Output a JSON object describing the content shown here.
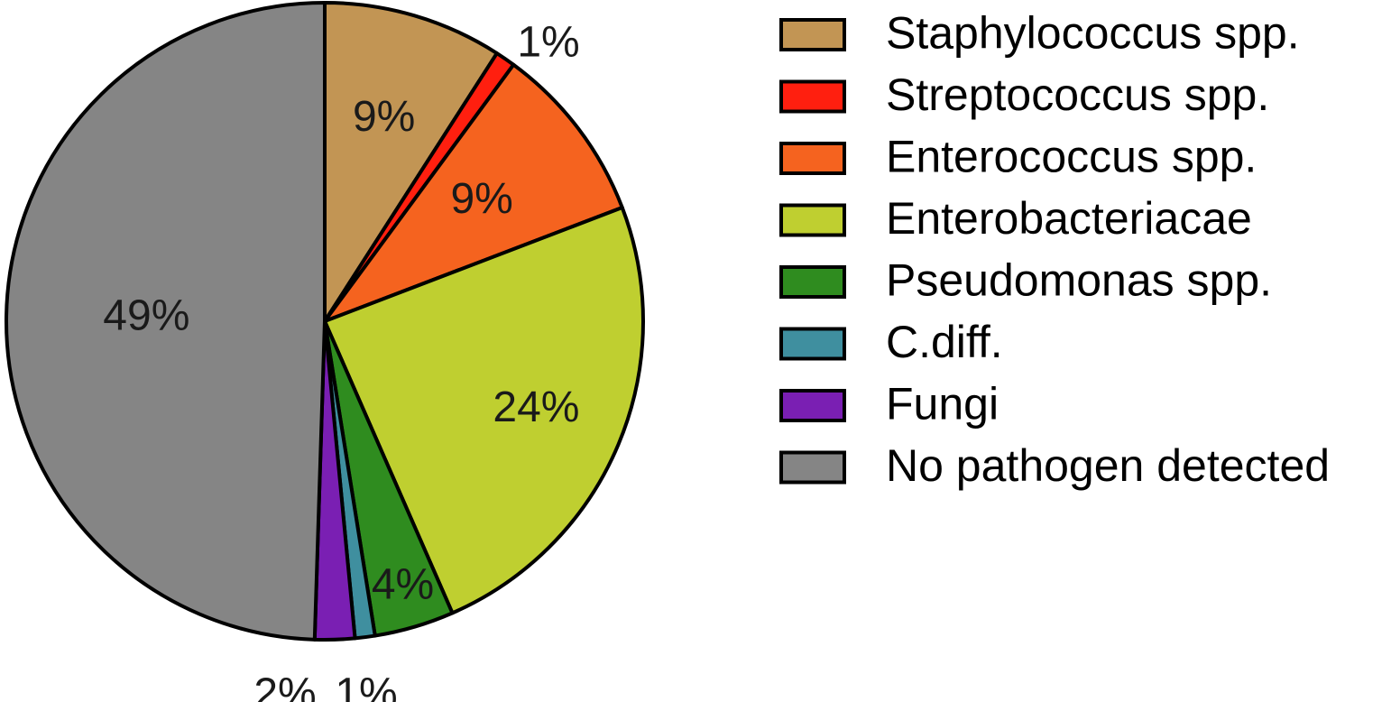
{
  "chart_data": {
    "type": "pie",
    "title": "",
    "legend_position": "right",
    "slices": [
      {
        "name": "Staphylococcus spp.",
        "value": 9,
        "label": "9%",
        "color": "#c29554"
      },
      {
        "name": "Streptococcus spp.",
        "value": 1,
        "label": "1%",
        "color": "#ff1f0f"
      },
      {
        "name": "Enterococcus spp.",
        "value": 9,
        "label": "9%",
        "color": "#f5631f"
      },
      {
        "name": "Enterobacteriacae",
        "value": 24,
        "label": "24%",
        "color": "#bfcf30"
      },
      {
        "name": "Pseudomonas spp.",
        "value": 4,
        "label": "4%",
        "color": "#2f8c1f"
      },
      {
        "name": "C.diff.",
        "value": 1,
        "label": "1%",
        "color": "#3f8f9f"
      },
      {
        "name": "Fungi",
        "value": 2,
        "label": "2%",
        "color": "#7a1fb3"
      },
      {
        "name": "No pathogen detected",
        "value": 49,
        "label": "49%",
        "color": "#858585"
      }
    ]
  }
}
